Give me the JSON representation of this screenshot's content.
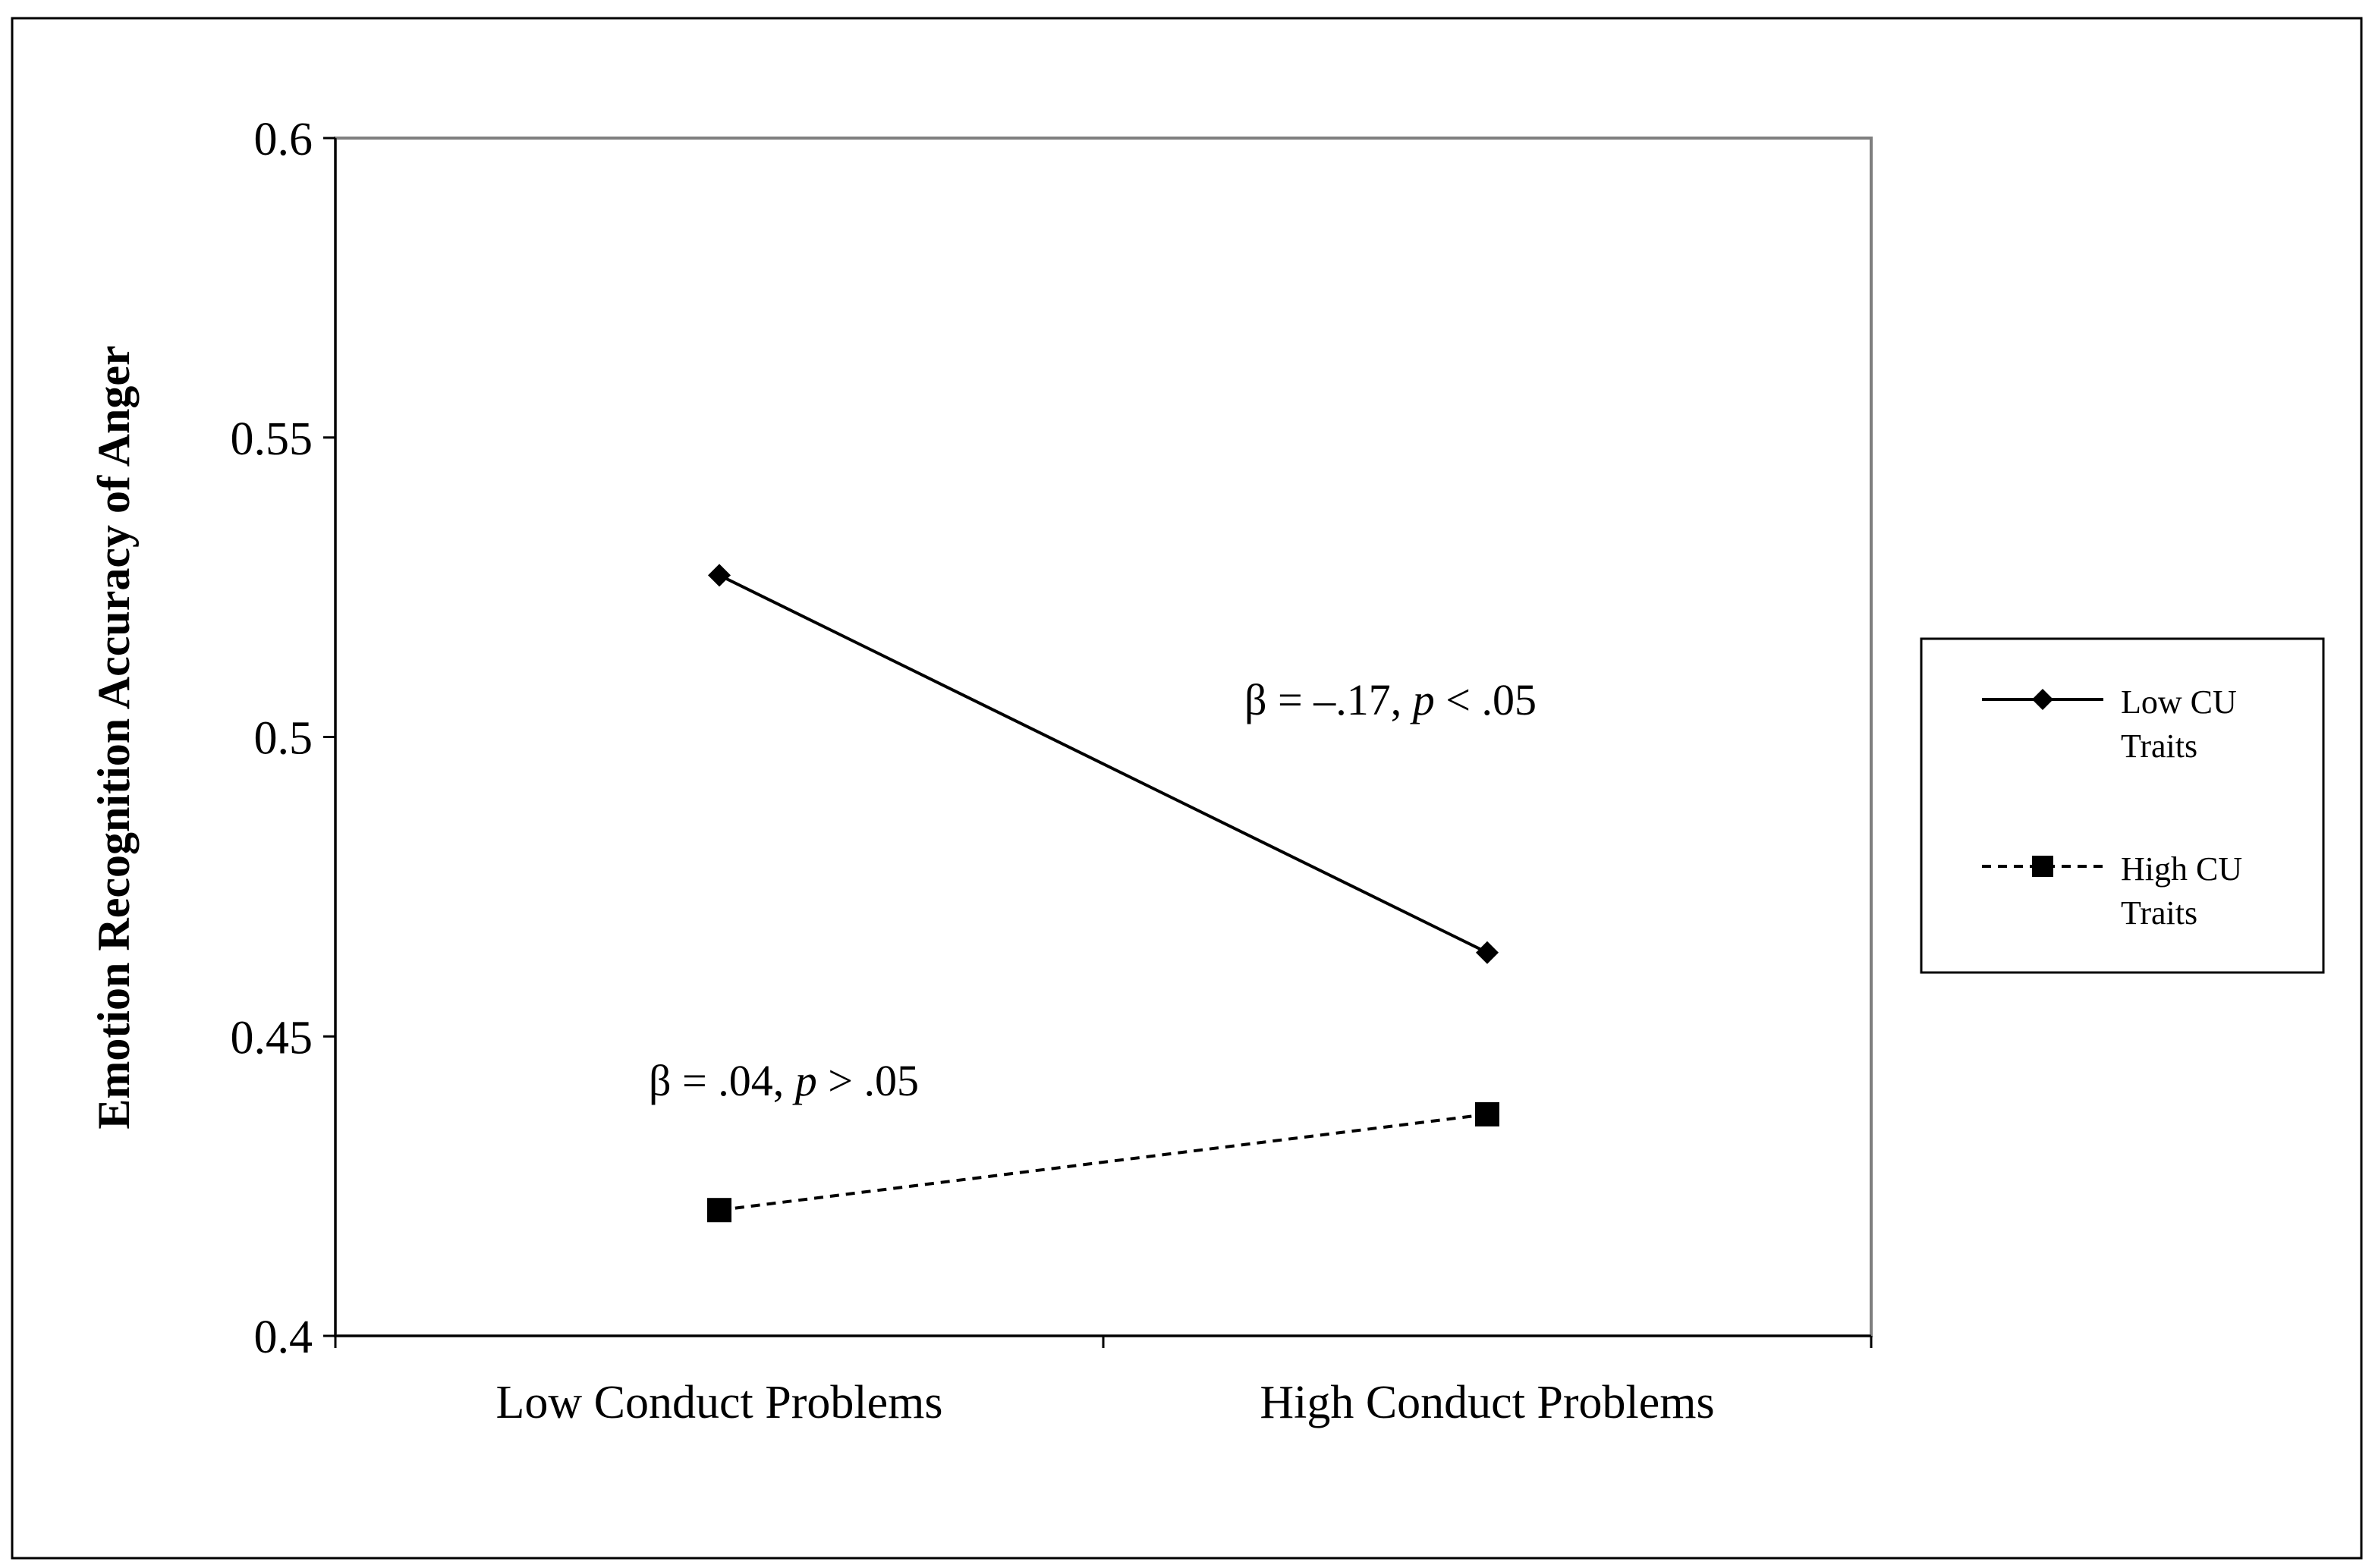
{
  "chart_data": {
    "type": "line",
    "title": "",
    "xlabel": "",
    "ylabel": "Emotion Recognition Accuracy of Anger",
    "categories": [
      "Low Conduct Problems",
      "High Conduct Problems"
    ],
    "ylim": [
      0.4,
      0.6
    ],
    "yticks": [
      "0.4",
      "0.45",
      "0.5",
      "0.55",
      "0.6"
    ],
    "grid": false,
    "legend_position": "right",
    "series": [
      {
        "name": "Low CU Traits",
        "legend_lines": [
          "Low CU",
          "Traits"
        ],
        "values": [
          0.527,
          0.464
        ],
        "line_style": "solid",
        "marker": "diamond",
        "color": "#000000"
      },
      {
        "name": "High CU Traits",
        "legend_lines": [
          "High CU",
          "Traits"
        ],
        "values": [
          0.421,
          0.437
        ],
        "line_style": "dashed",
        "marker": "square",
        "color": "#000000"
      }
    ],
    "annotations": [
      {
        "series": "Low CU Traits",
        "pre": "β = –.17, ",
        "p": "p",
        "post": " < .05"
      },
      {
        "series": "High CU Traits",
        "pre": "β = .04, ",
        "p": "p",
        "post": " > .05"
      }
    ]
  }
}
